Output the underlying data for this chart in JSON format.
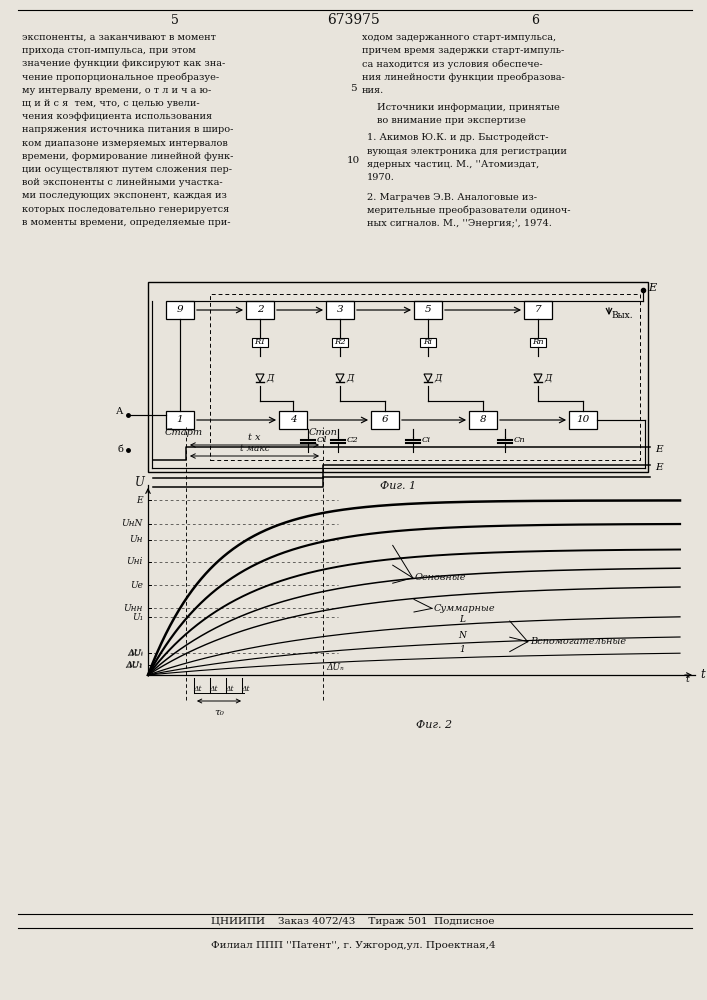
{
  "page_color": "#e8e4dc",
  "text_color": "#111111",
  "title_number": "673975",
  "page_left": "5",
  "page_right": "6",
  "col_left_text": [
    "экспоненты, а заканчивают в момент",
    "прихода стоп-импульса, при этом",
    "значение функции фиксируют как зна-",
    "чение пропорциональное преобразуе-",
    "му интервалу времени, о т л и ч а ю-",
    "щ и й с я  тем, что, с целью увели-",
    "чения коэффициента использования",
    "напряжения источника питания в широ-",
    "ком диапазоне измеряемых интервалов",
    "времени, формирование линейной функ-",
    "ции осуществляют путем сложения пер-",
    "вой экспоненты с линейными участка-",
    "ми последующих экспонент, каждая из",
    "которых последовательно генерируется",
    "в моменты времени, определяемые при-"
  ],
  "col_right_text_refs": [
    "ходом задержанного старт-импульса,",
    "причем время задержки старт-импуль-",
    "са находится из условия обеспече-",
    "ния линейности функции преобразова-",
    "ния."
  ],
  "sources_header": "Источники информации, принятые",
  "sources_subheader": "во внимание при экспертизе",
  "source1": "1. Акимов Ю.К. и др. Быстродейст-",
  "source1b": "вующая электроника для регистрации",
  "source1c": "ядерных частиц. М., ''Атомиздат,",
  "source1d": "1970.",
  "source2": "2. Маграчев Э.В. Аналоговые из-",
  "source2b": "мерительные преобразователи одиноч-",
  "source2c": "ных сигналов. М., ''Энергия;', 1974.",
  "fig1_label": "Фиг. 1",
  "fig2_label": "Фиг. 2",
  "bottom_line1": "ЦНИИПИ    Заказ 4072/43    Тираж 501  Подписное",
  "bottom_line2": "Филиал ППП ''Патент'', г. Ужгород,ул. Проектная,4"
}
